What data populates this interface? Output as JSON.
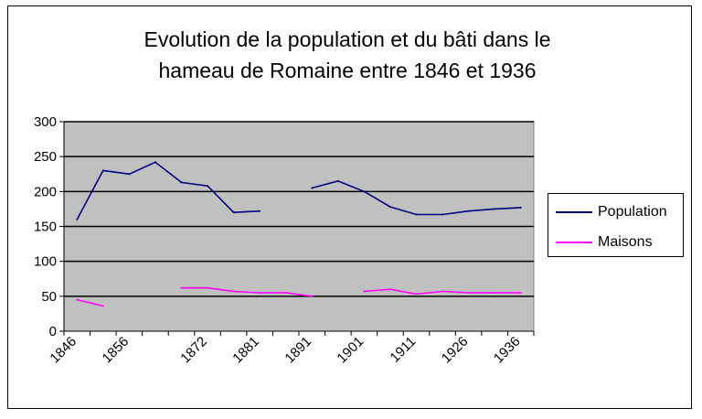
{
  "chart_data": {
    "type": "line",
    "title": "Evolution de la population et du bâti dans le\nhameau de Romaine entre 1846 et 1936",
    "xlabel": "",
    "ylabel": "",
    "x": [
      "1846",
      "1851",
      "1856",
      "1861",
      "1866",
      "1872",
      "1876",
      "1881",
      "1886",
      "1891",
      "1896",
      "1901",
      "1906",
      "1911",
      "1921",
      "1926",
      "1931",
      "1936"
    ],
    "x_tick_labels": [
      "1846",
      "1856",
      "1872",
      "1881",
      "1891",
      "1901",
      "1911",
      "1926",
      "1936"
    ],
    "y_ticks": [
      0,
      50,
      100,
      150,
      200,
      250,
      300
    ],
    "ylim": [
      0,
      300
    ],
    "grid": true,
    "legend_position": "right",
    "plot_background": "#c0c0c0",
    "series": [
      {
        "name": "Population",
        "color": "#000080",
        "values": [
          160,
          230,
          225,
          242,
          213,
          208,
          170,
          172,
          null,
          205,
          215,
          200,
          178,
          167,
          167,
          172,
          175,
          177
        ]
      },
      {
        "name": "Maisons",
        "color": "#ff00ff",
        "values": [
          45,
          36,
          null,
          null,
          62,
          62,
          57,
          55,
          55,
          50,
          null,
          57,
          60,
          53,
          57,
          55,
          55,
          55
        ]
      }
    ]
  }
}
